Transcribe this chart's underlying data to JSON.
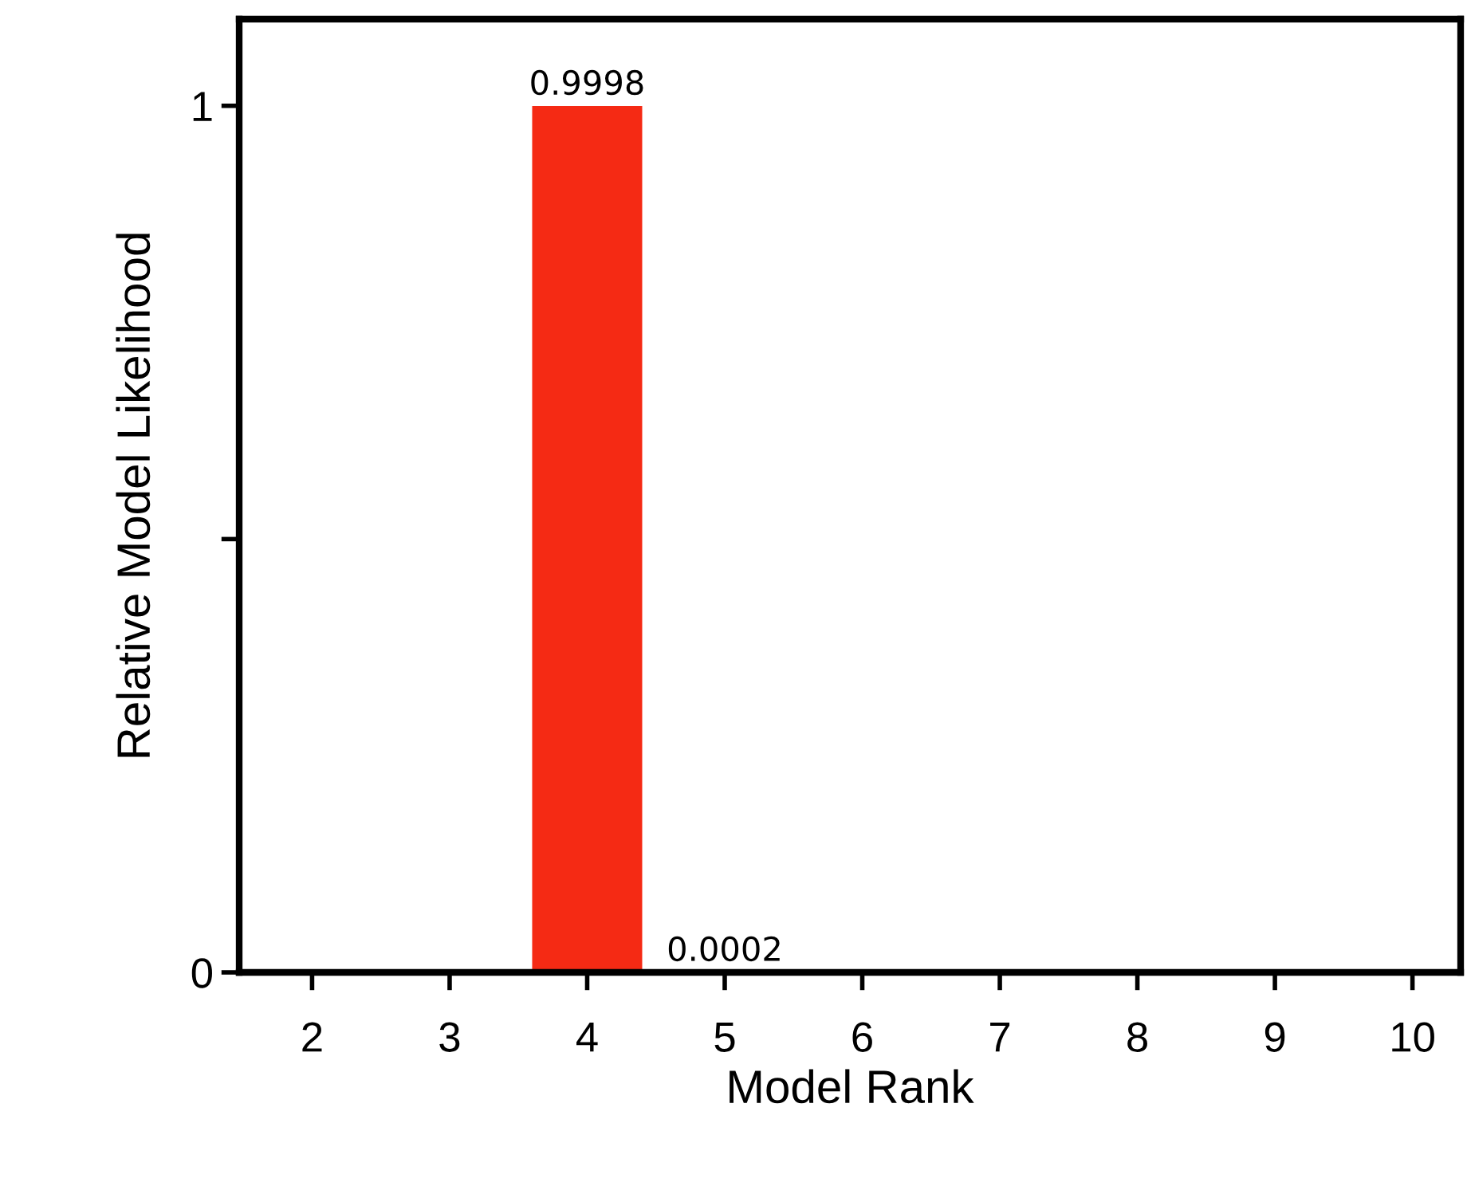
{
  "chart_data": {
    "type": "bar",
    "xlabel": "Model Rank",
    "ylabel": "Relative Model Likelihood",
    "categories": [
      "2",
      "3",
      "4",
      "5",
      "6",
      "7",
      "8",
      "9",
      "10"
    ],
    "values": [
      0,
      0,
      0.9998,
      0.0002,
      0,
      0,
      0,
      0,
      0
    ],
    "value_labels": [
      null,
      null,
      "0.9998",
      "0.0002",
      null,
      null,
      null,
      null,
      null
    ],
    "color": "#f52a14",
    "ylim": [
      0,
      1.1
    ],
    "yticks": [
      0,
      {
        "value": 0.5,
        "label": null
      },
      1
    ],
    "grid": false,
    "legend": false
  }
}
